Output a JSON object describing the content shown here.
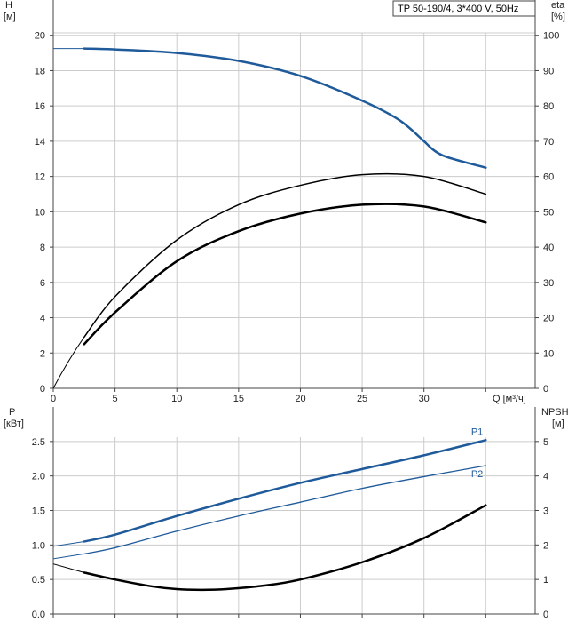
{
  "legend": {
    "text": "TP 50-190/4, 3*400 V, 50Hz"
  },
  "top": {
    "ylabel_left": "H",
    "yunit_left": "[м]",
    "ylabel_right": "eta",
    "yunit_right": "[%]",
    "xlabel": "Q [м³/ч]"
  },
  "bottom": {
    "ylabel_left": "P",
    "yunit_left": "[кВт]",
    "ylabel_right": "NPSH",
    "yunit_right": "[м]"
  },
  "colors": {
    "blue": "#1f5a9a",
    "black": "#000000",
    "grid": "#cccccc",
    "axis": "#444444"
  },
  "chart_data": [
    {
      "type": "line",
      "title": "",
      "xlabel": "Q [м³/ч]",
      "ylabel": "H [м]",
      "ylabel_right": "eta [%]",
      "xlim": [
        0,
        39
      ],
      "ylim": [
        0,
        22
      ],
      "ylim_right": [
        0,
        110
      ],
      "xticks": [
        0,
        5,
        10,
        15,
        20,
        25,
        30
      ],
      "yticks": [
        0,
        2,
        4,
        6,
        8,
        10,
        12,
        14,
        16,
        18,
        20
      ],
      "yticks_right": [
        0,
        10,
        20,
        30,
        40,
        50,
        60,
        70,
        80,
        90,
        100
      ],
      "grid": true,
      "series": [
        {
          "key": "H",
          "axis": "left",
          "color": "#1f5a9a",
          "width": 2.5,
          "extrapolated_from": 0,
          "x": [
            2.5,
            5,
            10,
            15,
            20,
            25,
            28,
            30
          ],
          "y": [
            19.25,
            19.2,
            19.0,
            18.55,
            17.7,
            16.3,
            15.2,
            14.0
          ]
        },
        {
          "key": "H_end",
          "axis": "left",
          "color": "#1f5a9a",
          "width": 2.5,
          "x": [
            30,
            31.5,
            35
          ],
          "y": [
            14.0,
            13.2,
            12.5
          ]
        },
        {
          "key": "eta1",
          "axis": "right",
          "color": "#000000",
          "width": 1.5,
          "extrapolated_from": 0,
          "x": [
            2.5,
            5,
            10,
            15,
            20,
            25,
            30,
            35
          ],
          "y": [
            14.5,
            26,
            42,
            52,
            57.5,
            60.5,
            60,
            55
          ]
        },
        {
          "key": "eta2",
          "axis": "right",
          "color": "#000000",
          "width": 2.5,
          "x": [
            2.5,
            5,
            10,
            15,
            20,
            25,
            30,
            35
          ],
          "y": [
            12.5,
            21.5,
            36,
            44.5,
            49.5,
            52,
            51.5,
            47
          ]
        }
      ]
    },
    {
      "type": "line",
      "title": "",
      "xlabel": "",
      "ylabel": "P [кВт]",
      "ylabel_right": "NPSH [м]",
      "xlim": [
        0,
        39
      ],
      "ylim": [
        0,
        3
      ],
      "ylim_right": [
        0,
        6
      ],
      "yticks": [
        0.0,
        0.5,
        1.0,
        1.5,
        2.0,
        2.5
      ],
      "ytick_labels": [
        "0.0",
        "0.5",
        "1.0",
        "1.5",
        "2.0",
        "2.5"
      ],
      "yticks_right": [
        0,
        1,
        2,
        3,
        4,
        5
      ],
      "grid": true,
      "series": [
        {
          "key": "P1",
          "name": "P1",
          "axis": "left",
          "color": "#1f5a9a",
          "width": 2.5,
          "extrapolated_from": 0,
          "x": [
            2.5,
            5,
            10,
            15,
            20,
            25,
            30,
            35
          ],
          "y": [
            1.05,
            1.15,
            1.42,
            1.67,
            1.9,
            2.1,
            2.3,
            2.52
          ]
        },
        {
          "key": "P2",
          "name": "P2",
          "axis": "left",
          "color": "#1f5a9a",
          "width": 1.3,
          "extrapolated_from": 0,
          "x": [
            2.5,
            5,
            10,
            15,
            20,
            25,
            30,
            35
          ],
          "y": [
            0.87,
            0.96,
            1.2,
            1.42,
            1.62,
            1.82,
            1.99,
            2.15
          ]
        },
        {
          "key": "NPSH",
          "axis": "right",
          "color": "#000000",
          "width": 2.5,
          "extrapolated_from": 0,
          "x": [
            2.5,
            5,
            8,
            10,
            12,
            14,
            17,
            20,
            25,
            30,
            35
          ],
          "y": [
            1.2,
            1.0,
            0.8,
            0.72,
            0.7,
            0.72,
            0.82,
            1.0,
            1.5,
            2.2,
            3.15
          ]
        }
      ]
    }
  ]
}
